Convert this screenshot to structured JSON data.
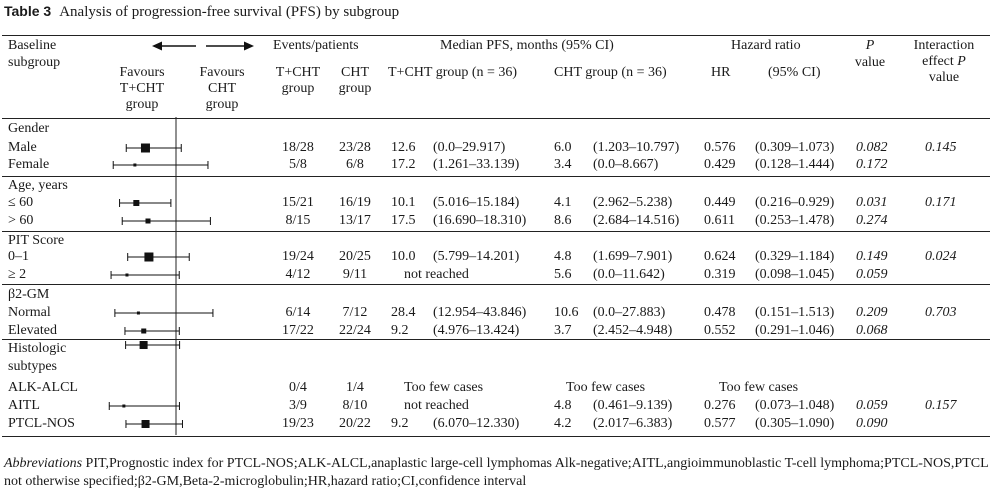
{
  "caption": {
    "label": "Table 3",
    "title": "Analysis of progression-free survival (PFS) by subgroup"
  },
  "header": {
    "baseline": "Baseline",
    "subgroup": "subgroup",
    "events_patients": "Events/patients",
    "median_pfs": "Median PFS, months (95% CI)",
    "hazard_ratio": "Hazard ratio",
    "p": "P",
    "value": "value",
    "interaction_1": "Interaction",
    "interaction_2": "effect",
    "interaction_p": "P",
    "interaction_3": "value",
    "favours_tcht": [
      "Favours",
      "T+CHT",
      "group"
    ],
    "favours_cht": [
      "Favours",
      "CHT",
      "group"
    ],
    "tcht_group": [
      "T+CHT",
      "group"
    ],
    "cht_group": [
      "CHT",
      "group"
    ],
    "tcht_n": "T+CHT group (n = 36)",
    "cht_n": "CHT group (n = 36)",
    "hr": "HR",
    "ci95": "(95% CI)"
  },
  "groups": [
    {
      "label": "Gender"
    },
    {
      "label": "Age, years"
    },
    {
      "label": "PIT Score"
    },
    {
      "label": "β2-GM"
    },
    {
      "label": [
        "Histologic",
        "subtypes"
      ]
    }
  ],
  "rows": [
    {
      "label": "Male",
      "ev_t": "18/28",
      "ev_c": "23/28",
      "med_t": "12.6",
      "ci_t": "(0.0–29.917)",
      "med_c": "6.0",
      "ci_c": "(1.203–10.797)",
      "hr": "0.576",
      "hr_ci": "(0.309–1.073)",
      "p": "0.082",
      "pint": "0.145"
    },
    {
      "label": "Female",
      "ev_t": "5/8",
      "ev_c": "6/8",
      "med_t": "17.2",
      "ci_t": "(1.261–33.139)",
      "med_c": "3.4",
      "ci_c": "(0.0–8.667)",
      "hr": "0.429",
      "hr_ci": "(0.128–1.444)",
      "p": "0.172",
      "pint": ""
    },
    {
      "label": "≤ 60",
      "ev_t": "15/21",
      "ev_c": "16/19",
      "med_t": "10.1",
      "ci_t": "(5.016–15.184)",
      "med_c": "4.1",
      "ci_c": "(2.962–5.238)",
      "hr": "0.449",
      "hr_ci": "(0.216–0.929)",
      "p": "0.031",
      "pint": "0.171"
    },
    {
      "label": "> 60",
      "ev_t": "8/15",
      "ev_c": "13/17",
      "med_t": "17.5",
      "ci_t": "(16.690–18.310)",
      "med_c": "8.6",
      "ci_c": "(2.684–14.516)",
      "hr": "0.611",
      "hr_ci": "(0.253–1.478)",
      "p": "0.274",
      "pint": ""
    },
    {
      "label": "0–1",
      "ev_t": "19/24",
      "ev_c": "20/25",
      "med_t": "10.0",
      "ci_t": "(5.799–14.201)",
      "med_c": "4.8",
      "ci_c": "(1.699–7.901)",
      "hr": "0.624",
      "hr_ci": "(0.329–1.184)",
      "p": "0.149",
      "pint": "0.024"
    },
    {
      "label": "≥ 2",
      "ev_t": "4/12",
      "ev_c": "9/11",
      "med_t_span": "not reached",
      "med_c": "5.6",
      "ci_c": "(0.0–11.642)",
      "hr": "0.319",
      "hr_ci": "(0.098–1.045)",
      "p": "0.059",
      "pint": ""
    },
    {
      "label": "Normal",
      "ev_t": "6/14",
      "ev_c": "7/12",
      "med_t": "28.4",
      "ci_t": "(12.954–43.846)",
      "med_c": "10.6",
      "ci_c": "(0.0–27.883)",
      "hr": "0.478",
      "hr_ci": "(0.151–1.513)",
      "p": "0.209",
      "pint": "0.703"
    },
    {
      "label": "Elevated",
      "ev_t": "17/22",
      "ev_c": "22/24",
      "med_t": "9.2",
      "ci_t": "(4.976–13.424)",
      "med_c": "3.7",
      "ci_c": "(2.452–4.948)",
      "hr": "0.552",
      "hr_ci": "(0.291–1.046)",
      "p": "0.068",
      "pint": ""
    },
    {
      "label": "ALK-ALCL",
      "ev_t": "0/4",
      "ev_c": "1/4",
      "med_t_span": "Too few cases",
      "med_c_span": "Too few cases",
      "hr_span": "Too few cases"
    },
    {
      "label": "AITL",
      "ev_t": "3/9",
      "ev_c": "8/10",
      "med_t_span": "not reached",
      "med_c": "4.8",
      "ci_c": "(0.461–9.139)",
      "hr": "0.276",
      "hr_ci": "(0.073–1.048)",
      "p": "0.059",
      "pint": "0.157"
    },
    {
      "label": "PTCL-NOS",
      "ev_t": "19/23",
      "ev_c": "20/22",
      "med_t": "9.2",
      "ci_t": "(6.070–12.330)",
      "med_c": "4.2",
      "ci_c": "(2.017–6.383)",
      "hr": "0.577",
      "hr_ci": "(0.305–1.090)",
      "p": "0.090",
      "pint": ""
    }
  ],
  "forest": {
    "null_value": 1.0,
    "axis_range": [
      0.0,
      1.5
    ],
    "markers": [
      {
        "ref": "Male",
        "est": 0.576,
        "lo": 0.309,
        "hi": 1.073,
        "size": 4.5
      },
      {
        "ref": "Female",
        "est": 0.429,
        "lo": 0.128,
        "hi": 1.444,
        "size": 1.5
      },
      {
        "ref": "≤ 60",
        "est": 0.449,
        "lo": 0.216,
        "hi": 0.929,
        "size": 3
      },
      {
        "ref": "> 60",
        "est": 0.611,
        "lo": 0.253,
        "hi": 1.478,
        "size": 2.5
      },
      {
        "ref": "0–1",
        "est": 0.624,
        "lo": 0.329,
        "hi": 1.184,
        "size": 4.5
      },
      {
        "ref": "≥ 2",
        "est": 0.319,
        "lo": 0.098,
        "hi": 1.045,
        "size": 1.5
      },
      {
        "ref": "Normal",
        "est": 0.478,
        "lo": 0.151,
        "hi": 1.513,
        "size": 1.5
      },
      {
        "ref": "Elevated",
        "est": 0.552,
        "lo": 0.291,
        "hi": 1.046,
        "size": 2.5
      },
      {
        "ref": "Histologic subtypes",
        "est": 0.55,
        "lo": 0.3,
        "hi": 1.05,
        "size": 4
      },
      {
        "ref": "AITL",
        "est": 0.276,
        "lo": 0.073,
        "hi": 1.048,
        "size": 1.5
      },
      {
        "ref": "PTCL-NOS",
        "est": 0.577,
        "lo": 0.305,
        "hi": 1.09,
        "size": 4
      }
    ]
  },
  "footer": {
    "abbr_label": "Abbreviations",
    "text": " PIT,Prognostic index for PTCL-NOS;ALK-ALCL,anaplastic large-cell lymphomas Alk-negative;AITL,angioimmunoblastic T-cell lymphoma;PTCL-NOS,PTCL not otherwise specified;β2-GM,Beta-2-microglobulin;HR,hazard ratio;CI,confidence interval"
  }
}
